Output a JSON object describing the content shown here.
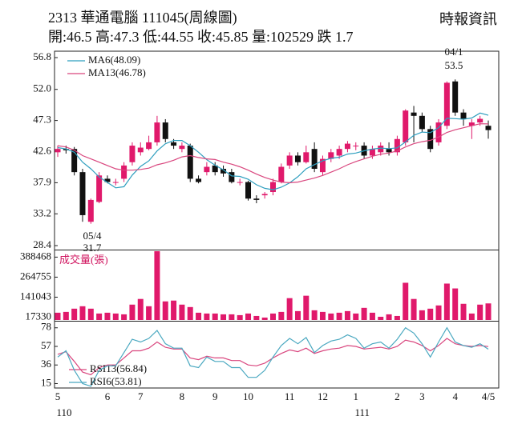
{
  "header": {
    "title": "2313  華通電腦 111045(周線圖)",
    "source": "時報資訊",
    "quote": "開:46.5 高:47.3 低:44.55 收:45.85 量:102529 跌 1.7"
  },
  "chart_data": [
    {
      "type": "candlestick",
      "categories": [
        "5",
        null,
        null,
        null,
        null,
        null,
        "6",
        null,
        null,
        null,
        "7",
        null,
        null,
        null,
        null,
        "8",
        null,
        null,
        null,
        "9",
        null,
        null,
        null,
        "10",
        null,
        null,
        null,
        null,
        "11",
        null,
        null,
        null,
        "12",
        null,
        null,
        null,
        "1",
        null,
        null,
        null,
        null,
        "2",
        null,
        null,
        "3",
        null,
        null,
        null,
        "4",
        null,
        null,
        null,
        "4/5"
      ],
      "x_sublabels": [
        "110",
        null,
        null,
        null,
        null,
        null,
        null,
        null,
        null,
        null,
        null,
        null,
        null,
        null,
        null,
        null,
        null,
        null,
        null,
        null,
        null,
        null,
        null,
        null,
        null,
        null,
        null,
        null,
        null,
        null,
        null,
        null,
        null,
        null,
        null,
        null,
        "111",
        null,
        null,
        null,
        null,
        null,
        null,
        null,
        null,
        null,
        null,
        null,
        null,
        null,
        null,
        null,
        null
      ],
      "open": [
        42.5,
        43.0,
        43.0,
        39.5,
        32.0,
        35.0,
        38.5,
        38.0,
        38.5,
        41.0,
        42.5,
        43.0,
        44.0,
        47.0,
        44.0,
        43.0,
        43.5,
        38.5,
        39.5,
        40.5,
        40.0,
        39.5,
        38.0,
        38.0,
        35.5,
        36.0,
        36.5,
        38.0,
        40.5,
        42.0,
        41.0,
        43.0,
        39.5,
        41.5,
        42.0,
        43.0,
        43.5,
        43.5,
        42.0,
        42.5,
        43.0,
        42.5,
        44.0,
        48.5,
        48.0,
        46.0,
        44.0,
        46.5,
        53.2,
        48.5,
        46.5,
        47.0,
        46.5
      ],
      "high": [
        43.5,
        43.5,
        43.3,
        40.0,
        35.5,
        39.5,
        39.0,
        38.5,
        41.0,
        44.0,
        44.0,
        45.0,
        48.0,
        47.5,
        44.5,
        44.0,
        43.8,
        39.0,
        41.0,
        41.0,
        40.5,
        40.0,
        38.5,
        38.2,
        36.0,
        36.5,
        38.5,
        40.8,
        42.5,
        42.5,
        43.5,
        44.0,
        42.0,
        43.0,
        43.5,
        44.2,
        44.0,
        44.0,
        43.5,
        44.0,
        44.0,
        45.0,
        49.0,
        49.5,
        48.5,
        46.5,
        47.5,
        53.2,
        53.5,
        49.0,
        47.5,
        48.0,
        47.3
      ],
      "low": [
        41.8,
        42.3,
        39.0,
        32.0,
        31.7,
        34.8,
        37.8,
        37.5,
        38.0,
        40.5,
        42.0,
        42.8,
        43.5,
        44.0,
        43.0,
        42.5,
        38.0,
        37.8,
        39.0,
        39.0,
        38.8,
        37.8,
        37.5,
        35.2,
        34.8,
        35.5,
        36.0,
        37.8,
        40.0,
        40.5,
        40.8,
        39.5,
        39.0,
        41.0,
        41.5,
        42.5,
        42.8,
        41.5,
        41.5,
        42.0,
        42.0,
        42.0,
        43.5,
        44.0,
        45.5,
        42.5,
        43.5,
        46.0,
        48.0,
        46.5,
        44.5,
        46.5,
        44.55
      ],
      "close": [
        43.0,
        42.8,
        39.5,
        33.0,
        35.3,
        39.0,
        38.0,
        38.0,
        40.5,
        43.5,
        43.2,
        44.0,
        47.0,
        44.5,
        43.5,
        43.5,
        38.5,
        38.0,
        40.3,
        39.5,
        39.3,
        38.0,
        38.0,
        35.5,
        35.3,
        36.2,
        38.0,
        40.3,
        42.0,
        41.0,
        42.5,
        40.0,
        41.5,
        42.5,
        43.0,
        43.8,
        43.5,
        42.0,
        43.0,
        43.5,
        42.5,
        44.5,
        48.8,
        48.0,
        46.0,
        43.0,
        47.0,
        53.0,
        48.5,
        47.5,
        47.0,
        47.55,
        45.85
      ],
      "up_color": "#e0196b",
      "down_color": "#111111",
      "ylim": [
        28.4,
        56.8
      ],
      "yticks": [
        56.8,
        {
          "value": 52,
          "label": "52.0"
        },
        47.3,
        42.6,
        37.9,
        33.2,
        28.4
      ],
      "lines": [
        {
          "name": "MA6(48.09)",
          "color": "#2f9fbf",
          "values": [
            43.2,
            43.0,
            42.5,
            41.0,
            40.0,
            38.77,
            37.93,
            37.13,
            37.3,
            39.05,
            40.37,
            41.2,
            42.7,
            43.78,
            44.28,
            44.28,
            43.5,
            42.5,
            41.38,
            40.55,
            39.85,
            38.93,
            38.85,
            38.43,
            37.6,
            37.05,
            36.83,
            37.22,
            37.88,
            38.8,
            40.0,
            40.63,
            41.22,
            41.58,
            41.75,
            42.22,
            42.38,
            42.72,
            42.97,
            43.13,
            43.05,
            43.17,
            44.05,
            45.05,
            45.55,
            45.47,
            46.22,
            47.63,
            47.58,
            47.5,
            47.67,
            48.43,
            48.09
          ]
        },
        {
          "name": "MA13(46.78)",
          "color": "#d9467e",
          "values": [
            43.5,
            43.3,
            42.8,
            42.0,
            41.5,
            41.0,
            40.5,
            40.0,
            39.8,
            39.8,
            39.9,
            40.1,
            40.6,
            40.9,
            41.3,
            41.8,
            42.0,
            41.7,
            41.5,
            41.4,
            41.0,
            40.7,
            40.3,
            39.8,
            39.2,
            38.7,
            38.3,
            38.0,
            37.9,
            38.0,
            38.3,
            38.6,
            39.0,
            39.5,
            40.0,
            40.6,
            41.1,
            41.5,
            41.9,
            42.2,
            42.4,
            42.7,
            43.3,
            43.8,
            44.1,
            44.3,
            44.8,
            45.5,
            45.9,
            46.2,
            46.5,
            46.8,
            46.78
          ]
        }
      ],
      "annotations": [
        "04/1",
        "53.5",
        "05/4",
        "31.7"
      ]
    },
    {
      "type": "bar",
      "ylabel": "成交量(張)",
      "color": "#e0196b",
      "values": [
        45000,
        50000,
        70000,
        85000,
        70000,
        40000,
        45000,
        40000,
        35000,
        95000,
        130000,
        85000,
        425000,
        115000,
        120000,
        95000,
        80000,
        45000,
        40000,
        40000,
        35000,
        35000,
        30000,
        40000,
        25000,
        15000,
        40000,
        50000,
        135000,
        55000,
        150000,
        60000,
        50000,
        40000,
        45000,
        55000,
        40000,
        75000,
        45000,
        20000,
        35000,
        25000,
        230000,
        130000,
        60000,
        70000,
        90000,
        225000,
        195000,
        100000,
        40000,
        95000,
        102529
      ],
      "ylim": [
        0,
        430000
      ],
      "yticks": [
        17330,
        141043,
        264755,
        388468
      ]
    },
    {
      "type": "line",
      "series": [
        {
          "name": "RSI13(56.84)",
          "color": "#d9467e",
          "values": [
            48,
            51,
            40,
            28,
            25,
            33,
            36,
            36,
            44,
            52,
            52,
            55,
            62,
            56,
            54,
            54,
            44,
            42,
            46,
            44,
            44,
            41,
            41,
            36,
            35,
            38,
            44,
            49,
            53,
            51,
            55,
            49,
            52,
            54,
            55,
            58,
            57,
            54,
            55,
            56,
            54,
            57,
            64,
            62,
            58,
            52,
            58,
            66,
            60,
            58,
            57,
            58,
            56.84
          ]
        },
        {
          "name": "RSI6(53.81)",
          "color": "#4aa8c0",
          "values": [
            45,
            52,
            30,
            15,
            12,
            30,
            35,
            35,
            50,
            65,
            62,
            66,
            75,
            60,
            55,
            55,
            35,
            33,
            45,
            40,
            40,
            33,
            33,
            22,
            22,
            30,
            45,
            58,
            66,
            60,
            67,
            50,
            58,
            63,
            65,
            70,
            66,
            55,
            60,
            62,
            55,
            65,
            78,
            72,
            60,
            45,
            62,
            78,
            62,
            58,
            56,
            60,
            53.81
          ]
        }
      ],
      "ylim": [
        10,
        85
      ],
      "yticks": [
        78,
        57,
        36,
        15
      ]
    }
  ]
}
